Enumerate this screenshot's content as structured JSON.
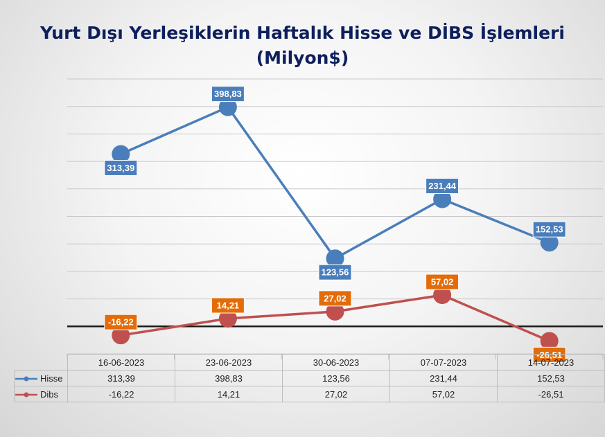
{
  "title_line1": "Yurt Dışı Yerleşiklerin Haftalık Hisse ve DİBS İşlemleri",
  "title_line2": "(Milyon$)",
  "colors": {
    "hisse": "#4a7ebb",
    "dibs": "#c0504d",
    "hisse_label_bg": "#4a7ebb",
    "dibs_label_bg": "#e36c09"
  },
  "chart_data": {
    "type": "line",
    "title": "Yurt Dışı Yerleşiklerin Haftalık Hisse ve DİBS İşlemleri (Milyon$)",
    "categories": [
      "16-06-2023",
      "23-06-2023",
      "30-06-2023",
      "07-07-2023",
      "14-07-2023"
    ],
    "series": [
      {
        "name": "Hisse",
        "values": [
          313.39,
          398.83,
          123.56,
          231.44,
          152.53
        ],
        "labels": [
          "313,39",
          "398,83",
          "123,56",
          "231,44",
          "152,53"
        ]
      },
      {
        "name": "Dibs",
        "values": [
          -16.22,
          14.21,
          27.02,
          57.02,
          -26.51
        ],
        "labels": [
          "-16,22",
          "14,21",
          "27,02",
          "57,02",
          "-26,51"
        ]
      }
    ],
    "ylim": [
      -50,
      450
    ],
    "grid": true,
    "legend": "data-table"
  }
}
